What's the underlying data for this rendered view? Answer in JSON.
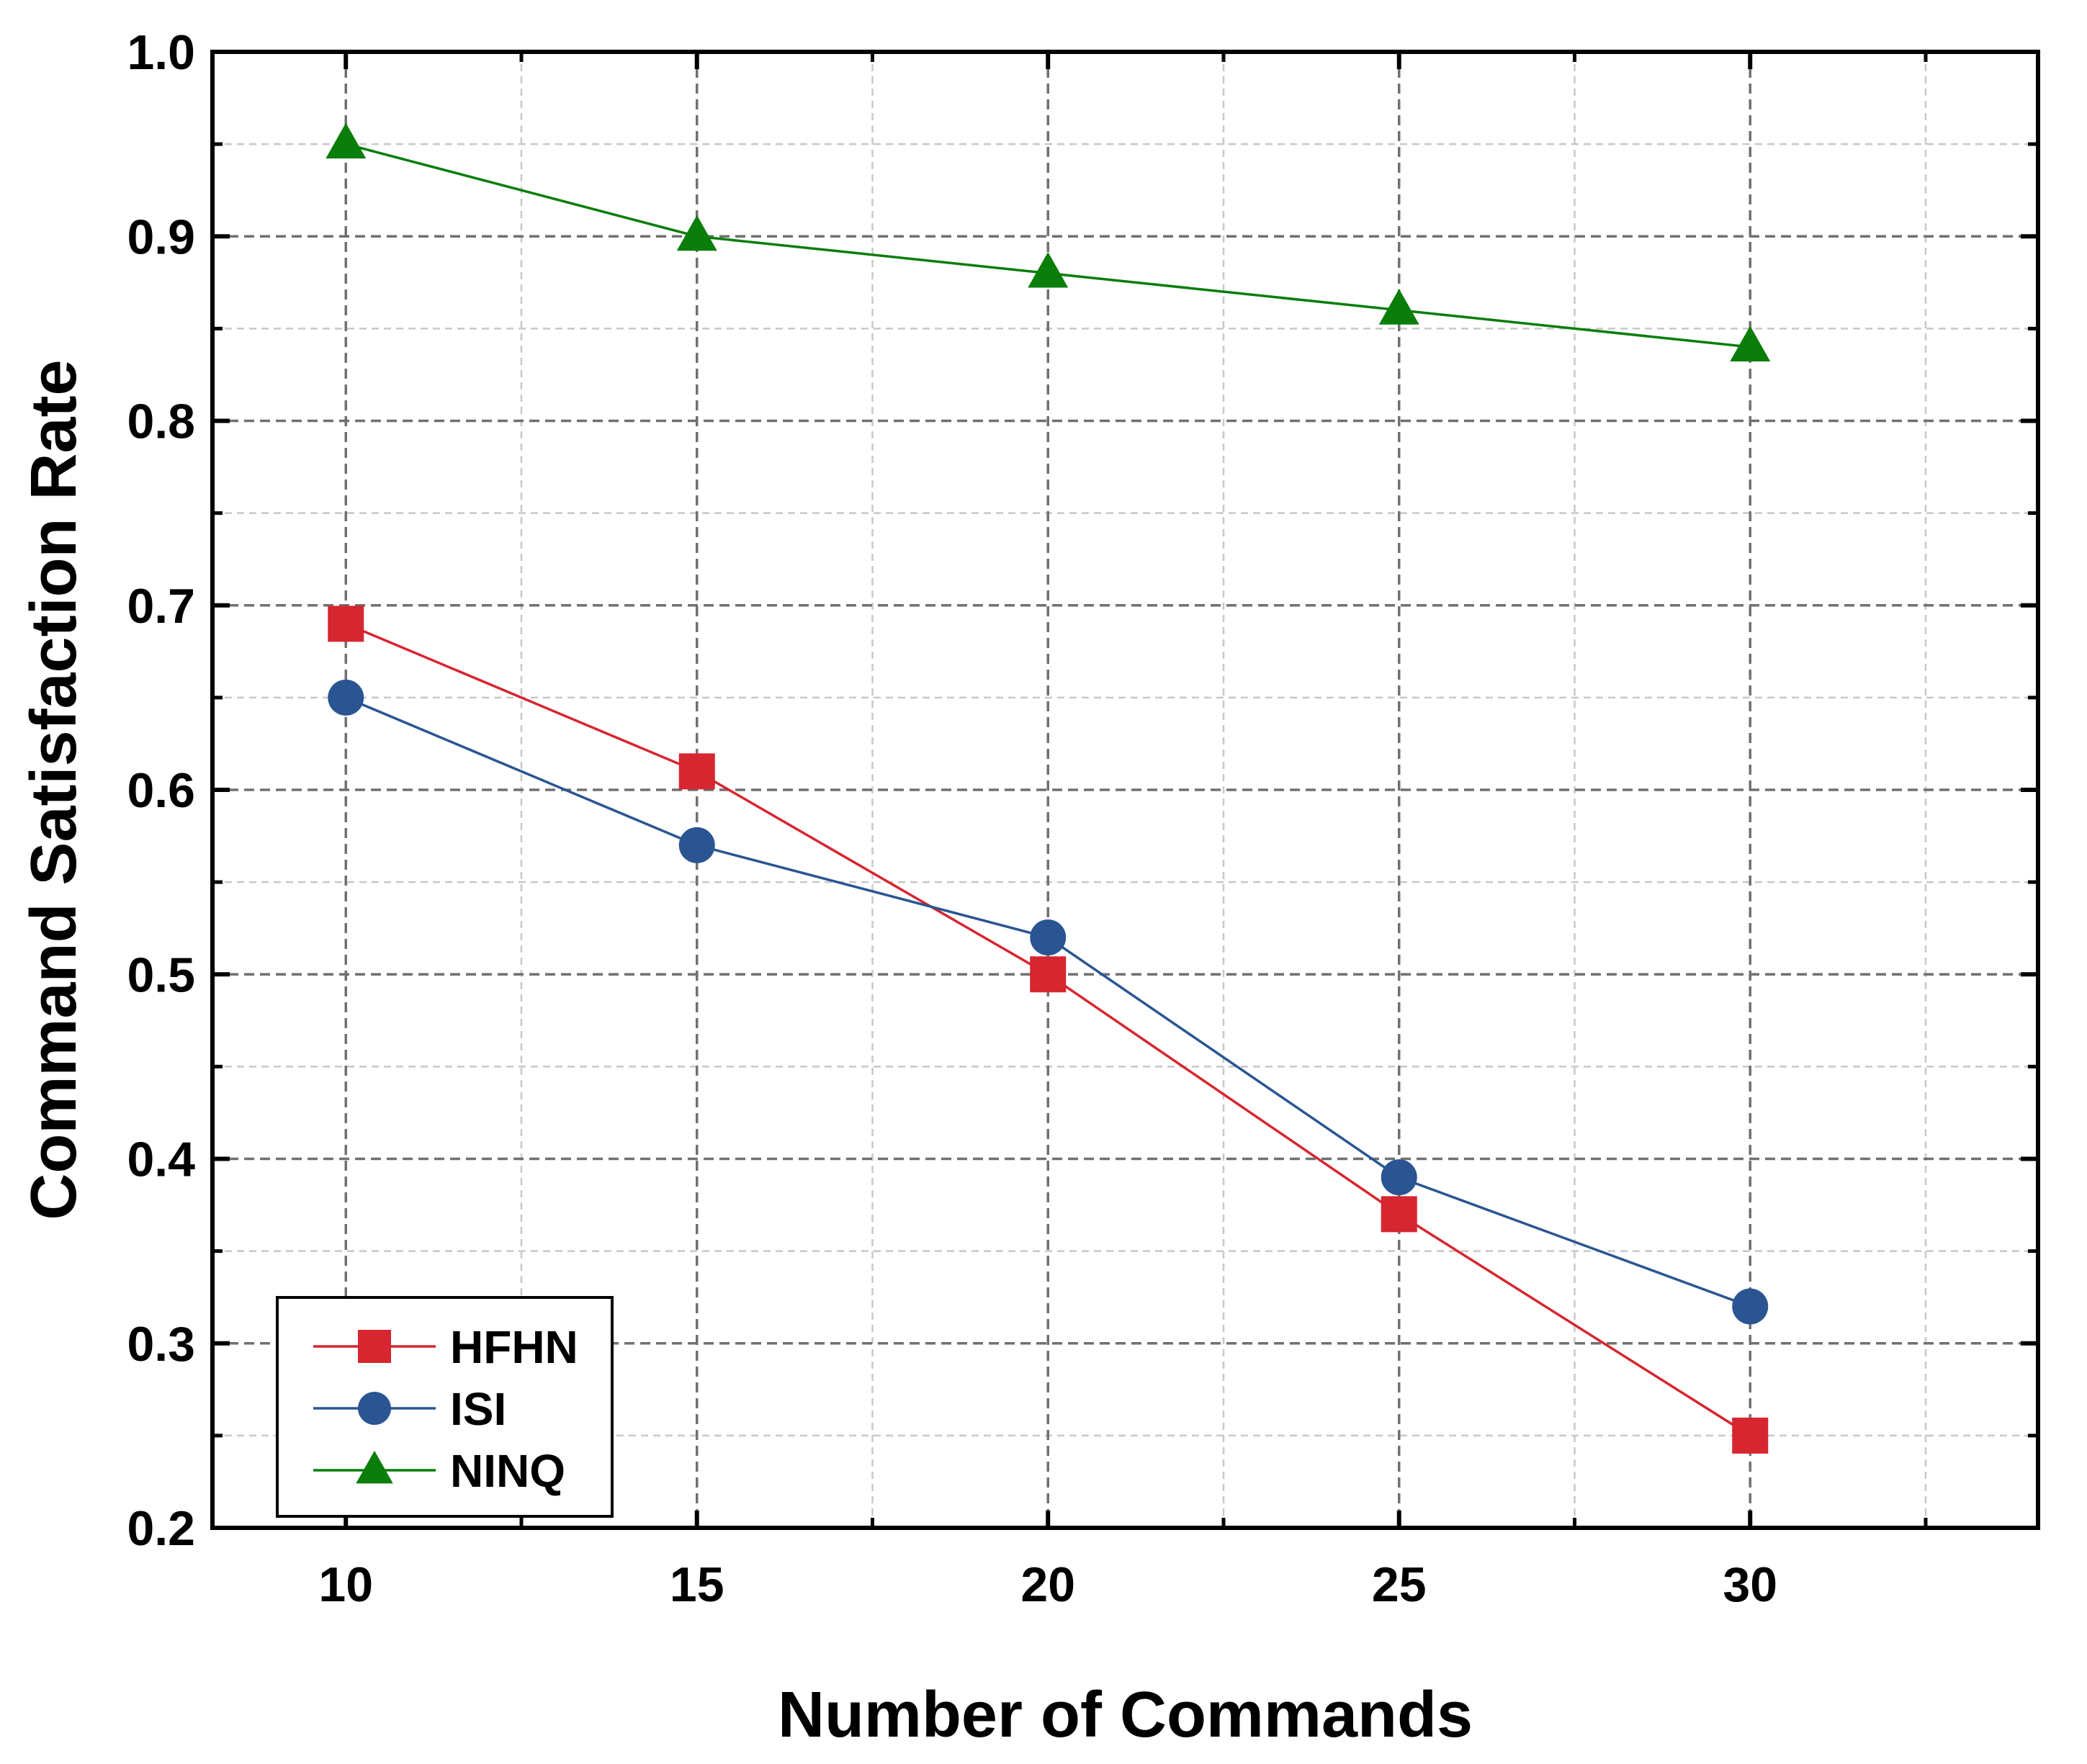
{
  "chart_data": {
    "type": "line",
    "xlabel": "Number of Commands",
    "ylabel": "Command Satisfaction Rate",
    "x": [
      10,
      15,
      20,
      25,
      30
    ],
    "xlim": [
      8.1,
      34.1
    ],
    "ylim": [
      0.2,
      1.0
    ],
    "xticks": [
      "10",
      "15",
      "20",
      "25",
      "30"
    ],
    "yticks": [
      "0.2",
      "0.3",
      "0.4",
      "0.5",
      "0.6",
      "0.7",
      "0.8",
      "0.9",
      "1.0"
    ],
    "grid": true,
    "legend_position": "bottom-left",
    "series": [
      {
        "name": "HFHN",
        "values": [
          0.69,
          0.61,
          0.5,
          0.37,
          0.25
        ],
        "color": "#d62630",
        "marker": "square"
      },
      {
        "name": "ISI",
        "values": [
          0.65,
          0.57,
          0.52,
          0.39,
          0.32
        ],
        "color": "#2a5592",
        "marker": "circle"
      },
      {
        "name": "NINQ",
        "values": [
          0.95,
          0.9,
          0.88,
          0.86,
          0.84
        ],
        "color": "#0a7d0a",
        "marker": "triangle"
      }
    ]
  }
}
